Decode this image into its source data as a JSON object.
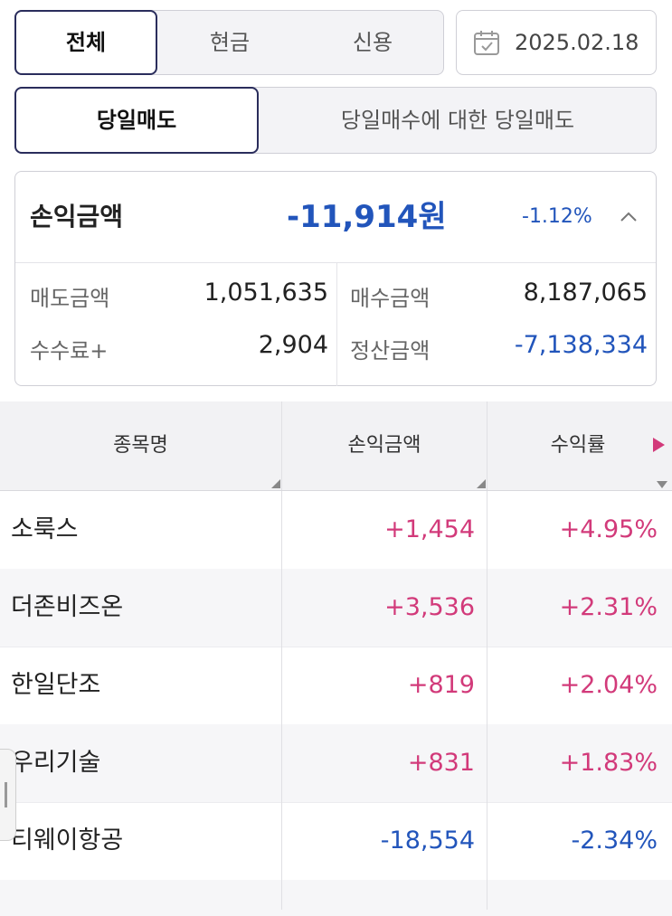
{
  "filter_tabs": [
    "전체",
    "현금",
    "신용"
  ],
  "filter_active": 0,
  "date": "2025.02.18",
  "mode_tabs": [
    "당일매도",
    "당일매수에 대한 당일매도"
  ],
  "mode_active": 0,
  "summary": {
    "label": "손익금액",
    "amount": "-11,914원",
    "rate": "-1.12%",
    "items": [
      {
        "label": "매도금액",
        "value": "1,051,635"
      },
      {
        "label": "매수금액",
        "value": "8,187,065"
      },
      {
        "label": "수수료+",
        "value": "2,904"
      },
      {
        "label": "정산금액",
        "value": "-7,138,334"
      }
    ]
  },
  "table": {
    "headers": [
      "종목명",
      "손익금액",
      "수익률"
    ],
    "rows": [
      {
        "name": "소룩스",
        "amount": "+1,454",
        "rate": "+4.95%",
        "sign": "pos"
      },
      {
        "name": "더존비즈온",
        "amount": "+3,536",
        "rate": "+2.31%",
        "sign": "pos"
      },
      {
        "name": "한일단조",
        "amount": "+819",
        "rate": "+2.04%",
        "sign": "pos"
      },
      {
        "name": "우리기술",
        "amount": "+831",
        "rate": "+1.83%",
        "sign": "pos"
      },
      {
        "name": "티웨이항공",
        "amount": "-18,554",
        "rate": "-2.34%",
        "sign": "neg"
      }
    ]
  },
  "colors": {
    "positive": "#d23a7a",
    "negative": "#2255bb",
    "accent": "#2a2d5c"
  }
}
